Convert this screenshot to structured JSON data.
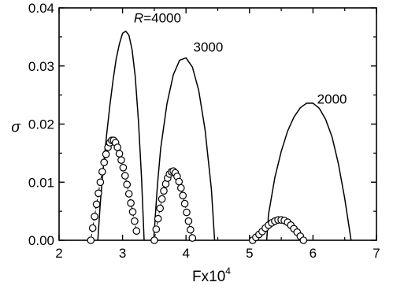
{
  "chart_data": {
    "type": "line",
    "title": "",
    "xlabel": "Fx10",
    "xlabel_superscript": "4",
    "ylabel": "σ",
    "xlim": [
      2,
      7
    ],
    "ylim": [
      0,
      0.04
    ],
    "x_ticks": [
      2,
      3,
      4,
      5,
      6,
      7
    ],
    "x_tick_labels": [
      "2",
      "3",
      "4",
      "5",
      "6",
      "7"
    ],
    "y_ticks": [
      0,
      0.01,
      0.02,
      0.03,
      0.04
    ],
    "y_tick_labels": [
      "0.00",
      "0.01",
      "0.02",
      "0.03",
      "0.04"
    ],
    "grid": false,
    "legend": "none",
    "annotations": [
      {
        "text": "R=4000",
        "x": 3.55,
        "y": 0.0375
      },
      {
        "text": "3000",
        "x": 4.35,
        "y": 0.0325
      },
      {
        "text": "2000",
        "x": 6.3,
        "y": 0.0235
      }
    ],
    "series": [
      {
        "style": "solid-line",
        "x": [
          2.61,
          2.65,
          2.7,
          2.75,
          2.8,
          2.85,
          2.9,
          2.95,
          3.0,
          3.05,
          3.1,
          3.15,
          3.2,
          3.25,
          3.3,
          3.34
        ],
        "values": [
          0.0,
          0.0065,
          0.0128,
          0.0182,
          0.0232,
          0.0275,
          0.0312,
          0.0338,
          0.0356,
          0.036,
          0.0353,
          0.0328,
          0.0282,
          0.0205,
          0.0105,
          0.0
        ]
      },
      {
        "style": "solid-line",
        "x": [
          3.49,
          3.55,
          3.6,
          3.7,
          3.8,
          3.9,
          4.0,
          4.1,
          4.2,
          4.3,
          4.4,
          4.45
        ],
        "values": [
          0.0,
          0.0095,
          0.0158,
          0.0235,
          0.0285,
          0.031,
          0.0314,
          0.0298,
          0.0258,
          0.019,
          0.0088,
          0.0
        ]
      },
      {
        "style": "solid-line",
        "x": [
          5.27,
          5.3,
          5.4,
          5.5,
          5.6,
          5.7,
          5.8,
          5.9,
          6.0,
          6.1,
          6.2,
          6.3,
          6.4,
          6.5,
          6.6
        ],
        "values": [
          0.0,
          0.0045,
          0.0108,
          0.0153,
          0.0188,
          0.0212,
          0.0228,
          0.0236,
          0.0236,
          0.0227,
          0.0208,
          0.0178,
          0.0132,
          0.0072,
          0.0
        ]
      },
      {
        "style": "open-circles-dashed",
        "x": [
          2.5,
          2.53,
          2.56,
          2.59,
          2.62,
          2.65,
          2.68,
          2.71,
          2.74,
          2.77,
          2.8,
          2.83,
          2.86,
          2.89,
          2.92,
          2.95,
          2.98,
          3.01,
          3.04,
          3.07,
          3.1,
          3.13,
          3.16,
          3.19,
          3.22
        ],
        "values": [
          0.0,
          0.0021,
          0.0041,
          0.0062,
          0.0081,
          0.01,
          0.0118,
          0.0134,
          0.0148,
          0.016,
          0.0168,
          0.0172,
          0.0172,
          0.0168,
          0.016,
          0.0149,
          0.0138,
          0.0125,
          0.0111,
          0.0096,
          0.008,
          0.0064,
          0.0049,
          0.0033,
          0.0016
        ]
      },
      {
        "style": "open-circles-dashed",
        "x": [
          3.5,
          3.53,
          3.56,
          3.59,
          3.62,
          3.65,
          3.68,
          3.71,
          3.74,
          3.77,
          3.8,
          3.83,
          3.86,
          3.89,
          3.92,
          3.95,
          3.98,
          4.01,
          4.04,
          4.07,
          4.1
        ],
        "values": [
          0.0,
          0.0019,
          0.0037,
          0.0055,
          0.0071,
          0.0085,
          0.0097,
          0.0107,
          0.0114,
          0.0118,
          0.0119,
          0.0116,
          0.011,
          0.0101,
          0.009,
          0.0077,
          0.0063,
          0.0048,
          0.0033,
          0.0018,
          0.0004
        ]
      },
      {
        "style": "open-circles-dashed",
        "x": [
          5.05,
          5.1,
          5.15,
          5.2,
          5.25,
          5.3,
          5.35,
          5.4,
          5.45,
          5.5,
          5.55,
          5.6,
          5.65,
          5.7,
          5.75,
          5.8,
          5.85
        ],
        "values": [
          0.0,
          0.0005,
          0.001,
          0.0015,
          0.0021,
          0.0026,
          0.003,
          0.0033,
          0.0035,
          0.0035,
          0.0034,
          0.0031,
          0.0026,
          0.002,
          0.0014,
          0.0007,
          0.0
        ]
      }
    ]
  }
}
